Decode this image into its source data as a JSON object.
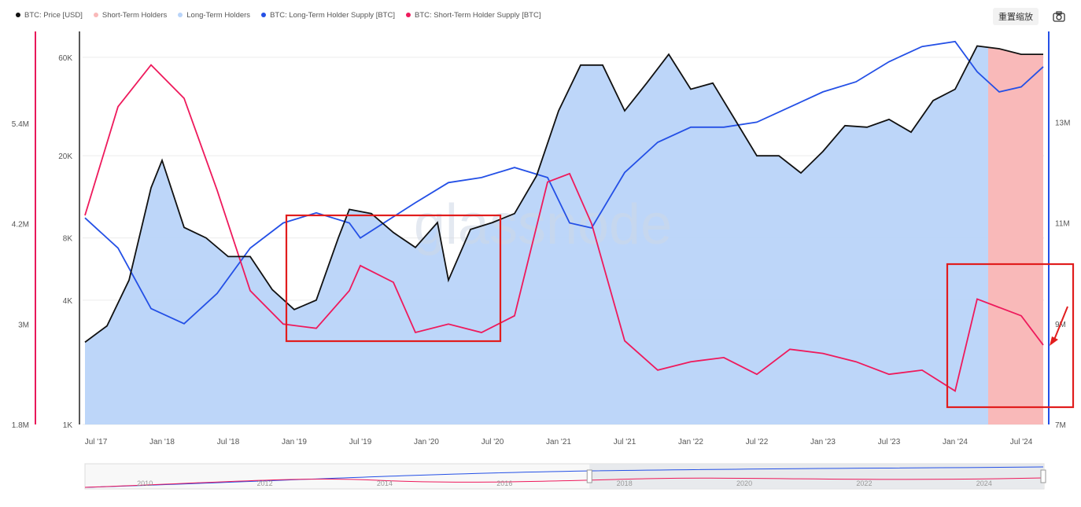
{
  "legend": [
    {
      "label": "BTC: Price [USD]",
      "color": "#111111"
    },
    {
      "label": "Short-Term Holders",
      "color": "#f9b9b9"
    },
    {
      "label": "Long-Term Holders",
      "color": "#b9d4f9"
    },
    {
      "label": "BTC: Long-Term Holder Supply [BTC]",
      "color": "#2450e6"
    },
    {
      "label": "BTC: Short-Term Holder Supply [BTC]",
      "color": "#ee1a5c"
    }
  ],
  "toolbar": {
    "reset_label": "重置缩放",
    "camera_icon": "camera-icon"
  },
  "watermark": "glassnode",
  "colors": {
    "price": "#111111",
    "lth": "#2450e6",
    "sth": "#ee1a5c",
    "lth_area": "#b9d4f9",
    "sth_area": "#f9b9b9",
    "highlight": "#e11d1d",
    "axis_left": "#e8195a",
    "axis_right": "#2450e6"
  },
  "chart_data": {
    "type": "line",
    "x_ticks": [
      "Jul '17",
      "Jan '18",
      "Jul '18",
      "Jan '19",
      "Jul '19",
      "Jan '20",
      "Jul '20",
      "Jan '21",
      "Jul '21",
      "Jan '22",
      "Jul '22",
      "Jan '23",
      "Jul '23",
      "Jan '24",
      "Jul '24"
    ],
    "price_axis": {
      "scale": "log",
      "ticks": [
        "1K",
        "4K",
        "8K",
        "20K",
        "60K"
      ],
      "range": [
        1000,
        80000
      ]
    },
    "left_supply_axis": {
      "ticks": [
        "1.8M",
        "3M",
        "4.2M",
        "5.4M"
      ],
      "range": [
        1800000,
        6500000
      ]
    },
    "right_supply_axis": {
      "ticks": [
        "7M",
        "9M",
        "11M",
        "13M"
      ],
      "range": [
        7000000,
        14800000
      ]
    },
    "series": [
      {
        "name": "BTC: Price [USD]",
        "axis": "price",
        "x": [
          "2017-06",
          "2017-08",
          "2017-10",
          "2017-12",
          "2018-01",
          "2018-03",
          "2018-05",
          "2018-07",
          "2018-09",
          "2018-11",
          "2019-01",
          "2019-03",
          "2019-05",
          "2019-06",
          "2019-08",
          "2019-10",
          "2019-12",
          "2020-02",
          "2020-03",
          "2020-05",
          "2020-07",
          "2020-09",
          "2020-11",
          "2021-01",
          "2021-03",
          "2021-05",
          "2021-07",
          "2021-09",
          "2021-11",
          "2022-01",
          "2022-03",
          "2022-05",
          "2022-07",
          "2022-09",
          "2022-11",
          "2023-01",
          "2023-03",
          "2023-05",
          "2023-07",
          "2023-09",
          "2023-11",
          "2024-01",
          "2024-03",
          "2024-05",
          "2024-07",
          "2024-09"
        ],
        "values": [
          2500,
          3000,
          5000,
          14000,
          19000,
          9000,
          8000,
          6500,
          6500,
          4500,
          3600,
          4000,
          8000,
          11000,
          10500,
          8500,
          7200,
          9500,
          5000,
          8800,
          9500,
          10500,
          16000,
          33000,
          55000,
          55000,
          33000,
          45000,
          62000,
          42000,
          45000,
          30000,
          20000,
          20000,
          16500,
          21000,
          28000,
          27500,
          30000,
          26000,
          37000,
          42000,
          68000,
          66000,
          62000,
          62000
        ]
      },
      {
        "name": "BTC: Long-Term Holder Supply [BTC]",
        "axis": "right",
        "x": [
          "2017-06",
          "2017-09",
          "2017-12",
          "2018-03",
          "2018-06",
          "2018-09",
          "2018-12",
          "2019-03",
          "2019-06",
          "2019-07",
          "2019-12",
          "2020-03",
          "2020-06",
          "2020-09",
          "2020-12",
          "2021-02",
          "2021-04",
          "2021-07",
          "2021-10",
          "2022-01",
          "2022-04",
          "2022-07",
          "2022-10",
          "2023-01",
          "2023-04",
          "2023-07",
          "2023-10",
          "2024-01",
          "2024-03",
          "2024-05",
          "2024-07",
          "2024-09"
        ],
        "values": [
          11100,
          10500,
          9300,
          9000,
          9600,
          10500,
          11000,
          11200,
          11000,
          10700,
          11400,
          11800,
          11900,
          12100,
          11900,
          11000,
          10900,
          12000,
          12600,
          12900,
          12900,
          13000,
          13300,
          13600,
          13800,
          14200,
          14500,
          14600,
          14000,
          13600,
          13700,
          14100
        ]
      },
      {
        "name": "BTC: Short-Term Holder Supply [BTC]",
        "axis": "left",
        "x": [
          "2017-06",
          "2017-09",
          "2017-12",
          "2018-03",
          "2018-06",
          "2018-09",
          "2018-12",
          "2019-03",
          "2019-06",
          "2019-07",
          "2019-10",
          "2019-12",
          "2020-03",
          "2020-06",
          "2020-09",
          "2020-12",
          "2021-02",
          "2021-04",
          "2021-07",
          "2021-10",
          "2022-01",
          "2022-04",
          "2022-07",
          "2022-10",
          "2023-01",
          "2023-04",
          "2023-07",
          "2023-10",
          "2024-01",
          "2024-03",
          "2024-05",
          "2024-07",
          "2024-09"
        ],
        "values": [
          4300,
          5600,
          6100,
          5700,
          4600,
          3400,
          3000,
          2950,
          3400,
          3700,
          3500,
          2900,
          3000,
          2900,
          3100,
          4700,
          4800,
          4200,
          2800,
          2450,
          2550,
          2600,
          2400,
          2700,
          2650,
          2550,
          2400,
          2450,
          2200,
          3300,
          3200,
          3100,
          2750
        ]
      }
    ],
    "supply_unit": "thousand BTC",
    "highlight_boxes": [
      {
        "from": "2019-01",
        "to": "2020-07"
      },
      {
        "from": "2024-01",
        "to": "2024-11"
      }
    ],
    "sth_shaded_period": {
      "from": "2024-04",
      "to": "2024-09"
    },
    "navigator_ticks": [
      "2010",
      "2012",
      "2014",
      "2016",
      "2018",
      "2020",
      "2022",
      "2024"
    ],
    "grid": true,
    "legend_position": "top-left"
  }
}
